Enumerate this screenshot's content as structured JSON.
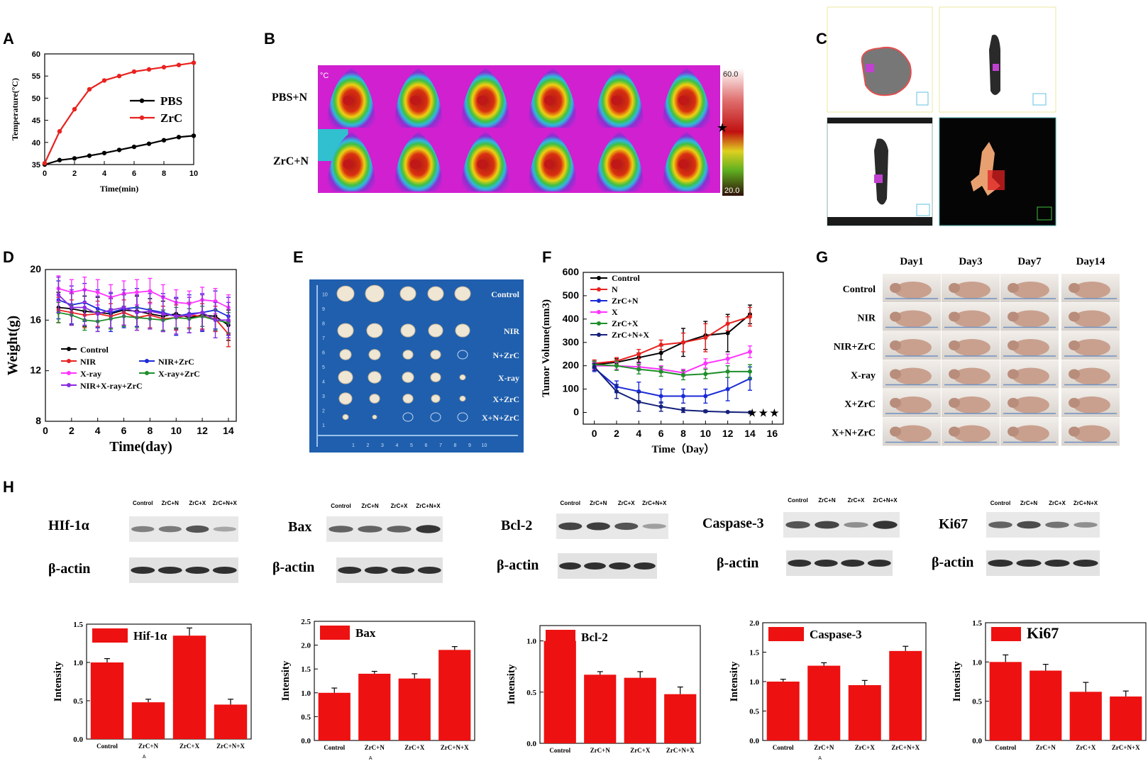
{
  "panel_labels": {
    "A": "A",
    "B": "B",
    "C": "C",
    "D": "D",
    "E": "E",
    "F": "F",
    "G": "G",
    "H": "H"
  },
  "panel_b": {
    "rows": [
      "PBS+N",
      "ZrC+N"
    ],
    "unit": "°C",
    "scale_max": "60.0",
    "scale_min": "20.0"
  },
  "panel_e": {
    "rows": [
      "Control",
      "NIR",
      "N+ZrC",
      "X-ray",
      "X+ZrC",
      "X+N+ZrC"
    ],
    "ruler_ticks": [
      "1",
      "2",
      "3",
      "4",
      "5",
      "6",
      "7",
      "8",
      "9",
      "10"
    ]
  },
  "panel_g": {
    "days": [
      "Day1",
      "Day3",
      "Day7",
      "Day14"
    ],
    "rows": [
      "Control",
      "NIR",
      "NIR+ZrC",
      "X-ray",
      "X+ZrC",
      "X+N+ZrC"
    ]
  },
  "panel_h_blots": [
    {
      "protein": "HIf-1α",
      "lanes": [
        "Control",
        "ZrC+N",
        "ZrC+X",
        "ZrC+N+X"
      ],
      "control": "β-actin"
    },
    {
      "protein": "Bax",
      "lanes": [
        "Control",
        "ZrC+N",
        "ZrC+X",
        "ZrC+N+X"
      ],
      "control": "β-actin"
    },
    {
      "protein": "Bcl-2",
      "lanes": [
        "Control",
        "ZrC+N",
        "ZrC+X",
        "ZrC+N+X"
      ],
      "control": "β-actin"
    },
    {
      "protein": "Caspase-3",
      "lanes": [
        "Control",
        "ZrC+N",
        "ZrC+X",
        "ZrC+N+X"
      ],
      "control": "β-actin"
    },
    {
      "protein": "Ki67",
      "lanes": [
        "Control",
        "ZrC+N",
        "ZrC+X",
        "ZrC+N+X"
      ],
      "control": "β-actin"
    }
  ],
  "colors": {
    "bar": "#ee1111",
    "pbs": "#000000",
    "zrc": "#e8221f"
  },
  "chart_data": [
    {
      "id": "A",
      "type": "line",
      "title": "",
      "xlabel": "Time(min)",
      "ylabel": "Temperature(°C)",
      "xlim": [
        0,
        10
      ],
      "ylim": [
        35,
        60
      ],
      "xticks": [
        "0",
        "2",
        "4",
        "6",
        "8",
        "10"
      ],
      "yticks": [
        "35",
        "40",
        "45",
        "50",
        "55",
        "60"
      ],
      "legend_position": "right",
      "series": [
        {
          "name": "PBS",
          "color": "#000000",
          "x": [
            0,
            1,
            2,
            3,
            4,
            5,
            6,
            7,
            8,
            9,
            10
          ],
          "y": [
            35.0,
            36.0,
            36.4,
            37.0,
            37.6,
            38.3,
            39.0,
            39.7,
            40.5,
            41.2,
            41.5
          ]
        },
        {
          "name": "ZrC",
          "color": "#e8221f",
          "x": [
            0,
            1,
            2,
            3,
            4,
            5,
            6,
            7,
            8,
            9,
            10
          ],
          "y": [
            35.3,
            42.5,
            47.5,
            52.0,
            54.0,
            55.0,
            56.0,
            56.5,
            57.0,
            57.5,
            58.0
          ]
        }
      ]
    },
    {
      "id": "D",
      "type": "line",
      "xlabel": "Time(day)",
      "ylabel": "Weight(g)",
      "xlim": [
        0,
        14.6
      ],
      "ylim": [
        8,
        20
      ],
      "xticks": [
        "0",
        "2",
        "4",
        "6",
        "8",
        "10",
        "12",
        "14"
      ],
      "yticks": [
        "8",
        "12",
        "16",
        "20"
      ],
      "legend_position": "lower-left",
      "x": [
        1,
        2,
        3,
        4,
        5,
        6,
        7,
        8,
        9,
        10,
        11,
        12,
        13,
        14
      ],
      "series": [
        {
          "name": "Control",
          "color": "#000000",
          "y": [
            17.0,
            16.9,
            16.7,
            16.6,
            16.5,
            16.8,
            16.7,
            16.5,
            16.3,
            16.5,
            16.2,
            16.4,
            16.3,
            15.6
          ],
          "err": 1.2
        },
        {
          "name": "NIR",
          "color": "#e8221f",
          "y": [
            16.8,
            16.6,
            16.4,
            16.5,
            16.3,
            16.6,
            16.2,
            16.4,
            16.1,
            16.2,
            16.4,
            16.3,
            16.1,
            14.9
          ],
          "err": 1.0
        },
        {
          "name": "NIR+ZrC",
          "color": "#1a2bd6",
          "y": [
            17.6,
            17.2,
            17.4,
            16.9,
            16.6,
            16.9,
            17.0,
            16.8,
            16.6,
            16.3,
            16.5,
            16.6,
            16.8,
            16.3
          ],
          "err": 1.5
        },
        {
          "name": "X-ray",
          "color": "#ff33ff",
          "y": [
            18.5,
            18.2,
            18.4,
            18.2,
            17.8,
            18.1,
            18.2,
            18.3,
            17.8,
            17.4,
            17.3,
            17.6,
            17.5,
            17.0
          ],
          "err": 1.0
        },
        {
          "name": "X-ray+ZrC",
          "color": "#1f8f2a",
          "y": [
            16.6,
            16.4,
            16.0,
            15.9,
            16.1,
            16.3,
            16.2,
            16.1,
            16.0,
            16.2,
            16.1,
            16.3,
            16.0,
            15.8
          ],
          "err": 0.8
        },
        {
          "name": "NIR+X-ray+ZrC",
          "color": "#8a2be2",
          "y": [
            18.0,
            17.0,
            17.0,
            16.5,
            16.8,
            17.0,
            16.6,
            16.7,
            16.5,
            16.3,
            16.4,
            16.6,
            16.0,
            16.0
          ],
          "err": 1.4
        }
      ]
    },
    {
      "id": "F",
      "type": "line",
      "xlabel": "Time（Day）",
      "ylabel": "Tumor Volume(mm3)",
      "xlim": [
        -1,
        17
      ],
      "ylim": [
        -50,
        600
      ],
      "xticks": [
        "0",
        "2",
        "4",
        "6",
        "8",
        "10",
        "12",
        "14",
        "16"
      ],
      "yticks": [
        "0",
        "100",
        "200",
        "300",
        "400",
        "500",
        "600"
      ],
      "legend_position": "top-left",
      "x": [
        0,
        2,
        4,
        6,
        8,
        10,
        12,
        14
      ],
      "series": [
        {
          "name": "Control",
          "color": "#000000",
          "y": [
            205,
            215,
            235,
            255,
            300,
            330,
            340,
            420
          ],
          "err": [
            15,
            15,
            20,
            30,
            60,
            60,
            80,
            40
          ]
        },
        {
          "name": "N",
          "color": "#e8221f",
          "y": [
            210,
            220,
            250,
            290,
            300,
            320,
            380,
            410
          ],
          "err": [
            15,
            15,
            20,
            20,
            40,
            60,
            30,
            40
          ]
        },
        {
          "name": "ZrC+N",
          "color": "#1a2bd6",
          "y": [
            190,
            110,
            90,
            70,
            70,
            70,
            100,
            145
          ],
          "err": [
            15,
            25,
            40,
            30,
            30,
            30,
            50,
            50
          ]
        },
        {
          "name": "X",
          "color": "#ff33ff",
          "y": [
            200,
            200,
            195,
            185,
            170,
            210,
            230,
            260
          ],
          "err": [
            15,
            15,
            15,
            15,
            15,
            20,
            20,
            25
          ]
        },
        {
          "name": "ZrC+X",
          "color": "#1f8f2a",
          "y": [
            205,
            200,
            185,
            175,
            160,
            165,
            175,
            175
          ],
          "err": [
            15,
            20,
            20,
            20,
            20,
            20,
            25,
            30
          ]
        },
        {
          "name": "ZrC+N+X",
          "color": "#14207a",
          "y": [
            195,
            90,
            45,
            25,
            10,
            5,
            2,
            0
          ],
          "err": [
            15,
            30,
            40,
            20,
            10,
            5,
            2,
            0
          ]
        }
      ]
    },
    {
      "id": "H1",
      "type": "bar",
      "ylabel": "Intensity",
      "legend": "Hif-1α",
      "categories": [
        "Control",
        "ZrC+N",
        "ZrC+X",
        "ZrC+N+X"
      ],
      "values": [
        1.0,
        0.48,
        1.35,
        0.45
      ],
      "errors": [
        0.05,
        0.04,
        0.1,
        0.07
      ],
      "ylim": [
        0,
        1.5
      ],
      "yticks": [
        "0.0",
        "0.5",
        "1.0",
        "1.5"
      ],
      "footnote": "A"
    },
    {
      "id": "H2",
      "type": "bar",
      "ylabel": "Intensity",
      "legend": "Bax",
      "categories": [
        "Control",
        "ZrC+N",
        "ZrC+X",
        "ZrC+N+X"
      ],
      "values": [
        1.0,
        1.4,
        1.3,
        1.9
      ],
      "errors": [
        0.1,
        0.05,
        0.1,
        0.07
      ],
      "ylim": [
        0,
        2.5
      ],
      "yticks": [
        "0.0",
        "0.5",
        "1.0",
        "1.5",
        "2.0",
        "2.5"
      ],
      "footnote": "A"
    },
    {
      "id": "H3",
      "type": "bar",
      "ylabel": "Intensity",
      "legend": "Bcl-2",
      "categories": [
        "Control",
        "ZrC+N",
        "ZrC+X",
        "ZrC+N+X"
      ],
      "values": [
        1.0,
        0.67,
        0.64,
        0.48
      ],
      "errors": [
        0.04,
        0.03,
        0.06,
        0.07
      ],
      "ylim": [
        0,
        1.15
      ],
      "yticks": [
        "0.0",
        "0.5",
        "1.0"
      ],
      "footnote": ""
    },
    {
      "id": "H4",
      "type": "bar",
      "ylabel": "Intensity",
      "legend": "Caspase-3",
      "categories": [
        "Control",
        "ZrC+N",
        "ZrC+X",
        "ZrC+N+X"
      ],
      "values": [
        1.0,
        1.27,
        0.94,
        1.52
      ],
      "errors": [
        0.04,
        0.05,
        0.08,
        0.08
      ],
      "ylim": [
        0,
        2.0
      ],
      "yticks": [
        "0.0",
        "0.5",
        "1.0",
        "1.5",
        "2.0"
      ],
      "footnote": "A"
    },
    {
      "id": "H5",
      "type": "bar",
      "ylabel": "Intensity",
      "legend": "Ki67",
      "categories": [
        "Control",
        "ZrC+N",
        "ZrC+X",
        "ZrC+N+X"
      ],
      "values": [
        1.0,
        0.89,
        0.62,
        0.56
      ],
      "errors": [
        0.09,
        0.08,
        0.12,
        0.07
      ],
      "ylim": [
        0,
        1.5
      ],
      "yticks": [
        "0.0",
        "0.5",
        "1.0",
        "1.5"
      ],
      "footnote": ""
    }
  ]
}
